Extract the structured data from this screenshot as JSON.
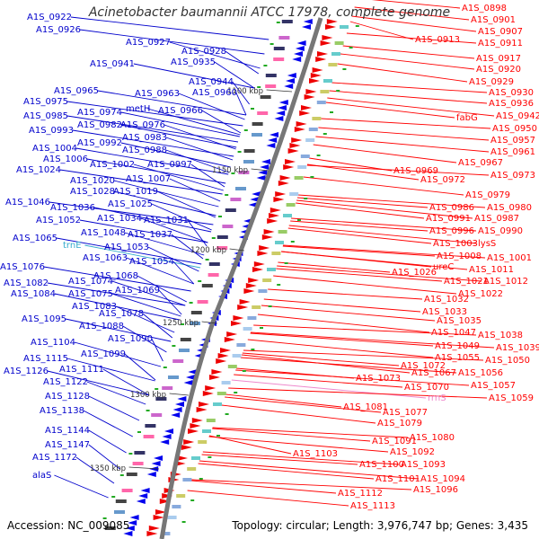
{
  "title": "Acinetobacter baumannii ATCC 17978, complete genome",
  "footer": {
    "accession": "Accession: NC_009085",
    "topology": "Topology: circular; Length: 3,976,747 bp; Genes: 3,435"
  },
  "colors": {
    "left_labels": "#0000cc",
    "right_labels": "#ff0000",
    "rna_labels": "#33aacc",
    "rrna_label": "#ee88cc"
  },
  "kbp_labels": [
    "1100 kbp",
    "1150 kbp",
    "1200 kbp",
    "1250 kbp",
    "1300 kbp",
    "1350 kbp"
  ],
  "left_genes": [
    "A1S_0922",
    "A1S_0926",
    "A1S_0927",
    "A1S_0928",
    "A1S_0941",
    "A1S_0935",
    "A1S_0944",
    "A1S_0965",
    "A1S_0963",
    "A1S_0960",
    "A1S_0975",
    "metH",
    "A1S_0966",
    "A1S_0974",
    "A1S_0985",
    "A1S_0982",
    "A1S_0976",
    "A1S_0993",
    "A1S_0983",
    "A1S_0992",
    "A1S_1004",
    "A1S_0988",
    "A1S_1006",
    "A1S_1002",
    "A1S_0997",
    "A1S_1024",
    "A1S_1020",
    "A1S_1007",
    "A1S_1028",
    "A1S_1019",
    "A1S_1046",
    "A1S_1036",
    "A1S_1025",
    "A1S_1052",
    "A1S_1034",
    "A1S_1031",
    "A1S_1048",
    "A1S_1037",
    "A1S_1065",
    "trnE",
    "A1S_1053",
    "A1S_1063",
    "A1S_1054",
    "A1S_1076",
    "A1S_1068",
    "A1S_1082",
    "A1S_1074",
    "A1S_1084",
    "A1S_1075",
    "A1S_1069",
    "A1S_1083",
    "A1S_1095",
    "A1S_1078",
    "A1S_1088",
    "A1S_1090",
    "A1S_1104",
    "A1S_1099",
    "A1S_1115",
    "A1S_1126",
    "A1S_1111",
    "A1S_1122",
    "A1S_1128",
    "A1S_1138",
    "A1S_1144",
    "A1S_1147",
    "A1S_1172",
    "alaS"
  ],
  "right_genes": [
    "A1S_0898",
    "A1S_0901",
    "A1S_0907",
    "A1S_0913",
    "A1S_0911",
    "A1S_0917",
    "A1S_0920",
    "A1S_0929",
    "A1S_0930",
    "A1S_0936",
    "fabG",
    "A1S_0942",
    "A1S_0950",
    "A1S_0957",
    "A1S_0961",
    "A1S_0967",
    "A1S_0973",
    "A1S_0969",
    "A1S_0972",
    "A1S_0979",
    "A1S_0986",
    "A1S_0980",
    "A1S_0991",
    "A1S_0987",
    "A1S_0996",
    "A1S_0990",
    "A1S_1003",
    "lysS",
    "A1S_1008",
    "A1S_1001",
    "ureC",
    "A1S_1011",
    "A1S_1026",
    "A1S_1021",
    "A1S_1012",
    "A1S_1022",
    "A1S_1032",
    "A1S_1033",
    "A1S_1035",
    "A1S_1047",
    "A1S_1038",
    "A1S_1049",
    "A1S_1039",
    "A1S_1055",
    "A1S_1050",
    "A1S_1072",
    "A1S_1056",
    "A1S_1067",
    "A1S_1073",
    "A1S_1070",
    "A1S_1057",
    "rrnS",
    "A1S_1059",
    "A1S_1081",
    "A1S_1077",
    "A1S_1079",
    "A1S_1080",
    "A1S_1091",
    "A1S_1092",
    "A1S_1103",
    "A1S_1100",
    "A1S_1093",
    "A1S_1101",
    "A1S_1094",
    "A1S_1096",
    "A1S_1112",
    "A1S_1113"
  ]
}
